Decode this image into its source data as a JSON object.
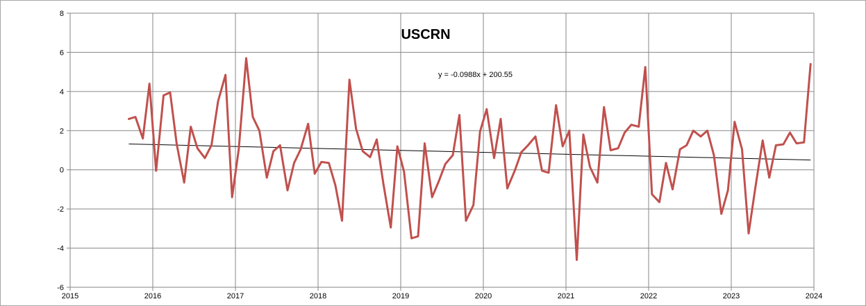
{
  "chart_data": {
    "type": "line",
    "title": "USCRN",
    "xlabel": "",
    "ylabel": "",
    "xlim": [
      2015,
      2024
    ],
    "ylim": [
      -6,
      8
    ],
    "x_ticks": [
      "2015",
      "2016",
      "2017",
      "2018",
      "2019",
      "2020",
      "2021",
      "2022",
      "2023",
      "2024"
    ],
    "y_ticks": [
      "-6",
      "-4",
      "-2",
      "0",
      "2",
      "4",
      "6",
      "8"
    ],
    "grid": true,
    "legend": "none",
    "trendline": {
      "label": "y = -0.0988x + 200.55",
      "x_start": 2015.71,
      "x_end": 2023.96,
      "y_start": 1.32,
      "y_end": 0.5,
      "color": "#000000"
    },
    "series": [
      {
        "color": "#c0504d",
        "points": [
          [
            2015.71,
            2.6
          ],
          [
            2015.79,
            2.7
          ],
          [
            2015.88,
            1.6
          ],
          [
            2015.96,
            4.4
          ],
          [
            2016.04,
            -0.05
          ],
          [
            2016.13,
            3.8
          ],
          [
            2016.21,
            3.95
          ],
          [
            2016.29,
            1.3
          ],
          [
            2016.38,
            -0.65
          ],
          [
            2016.46,
            2.2
          ],
          [
            2016.54,
            1.1
          ],
          [
            2016.63,
            0.6
          ],
          [
            2016.71,
            1.25
          ],
          [
            2016.79,
            3.5
          ],
          [
            2016.88,
            4.85
          ],
          [
            2016.96,
            -1.4
          ],
          [
            2017.04,
            1.05
          ],
          [
            2017.13,
            5.7
          ],
          [
            2017.21,
            2.7
          ],
          [
            2017.29,
            2.0
          ],
          [
            2017.38,
            -0.4
          ],
          [
            2017.46,
            0.95
          ],
          [
            2017.54,
            1.25
          ],
          [
            2017.63,
            -1.05
          ],
          [
            2017.71,
            0.35
          ],
          [
            2017.79,
            1.05
          ],
          [
            2017.88,
            2.35
          ],
          [
            2017.96,
            -0.2
          ],
          [
            2018.04,
            0.4
          ],
          [
            2018.13,
            0.35
          ],
          [
            2018.21,
            -0.8
          ],
          [
            2018.29,
            -2.6
          ],
          [
            2018.38,
            4.6
          ],
          [
            2018.46,
            2.1
          ],
          [
            2018.54,
            0.95
          ],
          [
            2018.63,
            0.65
          ],
          [
            2018.71,
            1.55
          ],
          [
            2018.79,
            -0.7
          ],
          [
            2018.88,
            -2.95
          ],
          [
            2018.96,
            1.2
          ],
          [
            2019.04,
            -0.1
          ],
          [
            2019.13,
            -3.5
          ],
          [
            2019.21,
            -3.4
          ],
          [
            2019.29,
            1.35
          ],
          [
            2019.38,
            -1.4
          ],
          [
            2019.46,
            -0.6
          ],
          [
            2019.54,
            0.3
          ],
          [
            2019.63,
            0.75
          ],
          [
            2019.71,
            2.8
          ],
          [
            2019.79,
            -2.6
          ],
          [
            2019.88,
            -1.8
          ],
          [
            2019.96,
            1.95
          ],
          [
            2020.04,
            3.1
          ],
          [
            2020.13,
            0.6
          ],
          [
            2020.21,
            2.6
          ],
          [
            2020.29,
            -0.95
          ],
          [
            2020.38,
            -0.05
          ],
          [
            2020.46,
            0.9
          ],
          [
            2020.54,
            1.25
          ],
          [
            2020.63,
            1.7
          ],
          [
            2020.71,
            -0.05
          ],
          [
            2020.79,
            -0.15
          ],
          [
            2020.88,
            3.3
          ],
          [
            2020.96,
            1.2
          ],
          [
            2021.04,
            2.0
          ],
          [
            2021.13,
            -4.6
          ],
          [
            2021.21,
            1.8
          ],
          [
            2021.29,
            0.15
          ],
          [
            2021.38,
            -0.65
          ],
          [
            2021.46,
            3.2
          ],
          [
            2021.54,
            1.0
          ],
          [
            2021.63,
            1.1
          ],
          [
            2021.71,
            1.9
          ],
          [
            2021.79,
            2.3
          ],
          [
            2021.88,
            2.2
          ],
          [
            2021.96,
            5.25
          ],
          [
            2022.04,
            -1.25
          ],
          [
            2022.13,
            -1.65
          ],
          [
            2022.21,
            0.35
          ],
          [
            2022.29,
            -1.0
          ],
          [
            2022.38,
            1.05
          ],
          [
            2022.46,
            1.25
          ],
          [
            2022.54,
            2.0
          ],
          [
            2022.63,
            1.7
          ],
          [
            2022.71,
            2.0
          ],
          [
            2022.79,
            0.75
          ],
          [
            2022.88,
            -2.25
          ],
          [
            2022.96,
            -1.05
          ],
          [
            2023.04,
            2.45
          ],
          [
            2023.13,
            1.05
          ],
          [
            2023.21,
            -3.25
          ],
          [
            2023.29,
            -0.95
          ],
          [
            2023.38,
            1.5
          ],
          [
            2023.46,
            -0.4
          ],
          [
            2023.54,
            1.25
          ],
          [
            2023.63,
            1.3
          ],
          [
            2023.71,
            1.9
          ],
          [
            2023.79,
            1.35
          ],
          [
            2023.88,
            1.4
          ],
          [
            2023.96,
            5.4
          ]
        ]
      }
    ]
  }
}
